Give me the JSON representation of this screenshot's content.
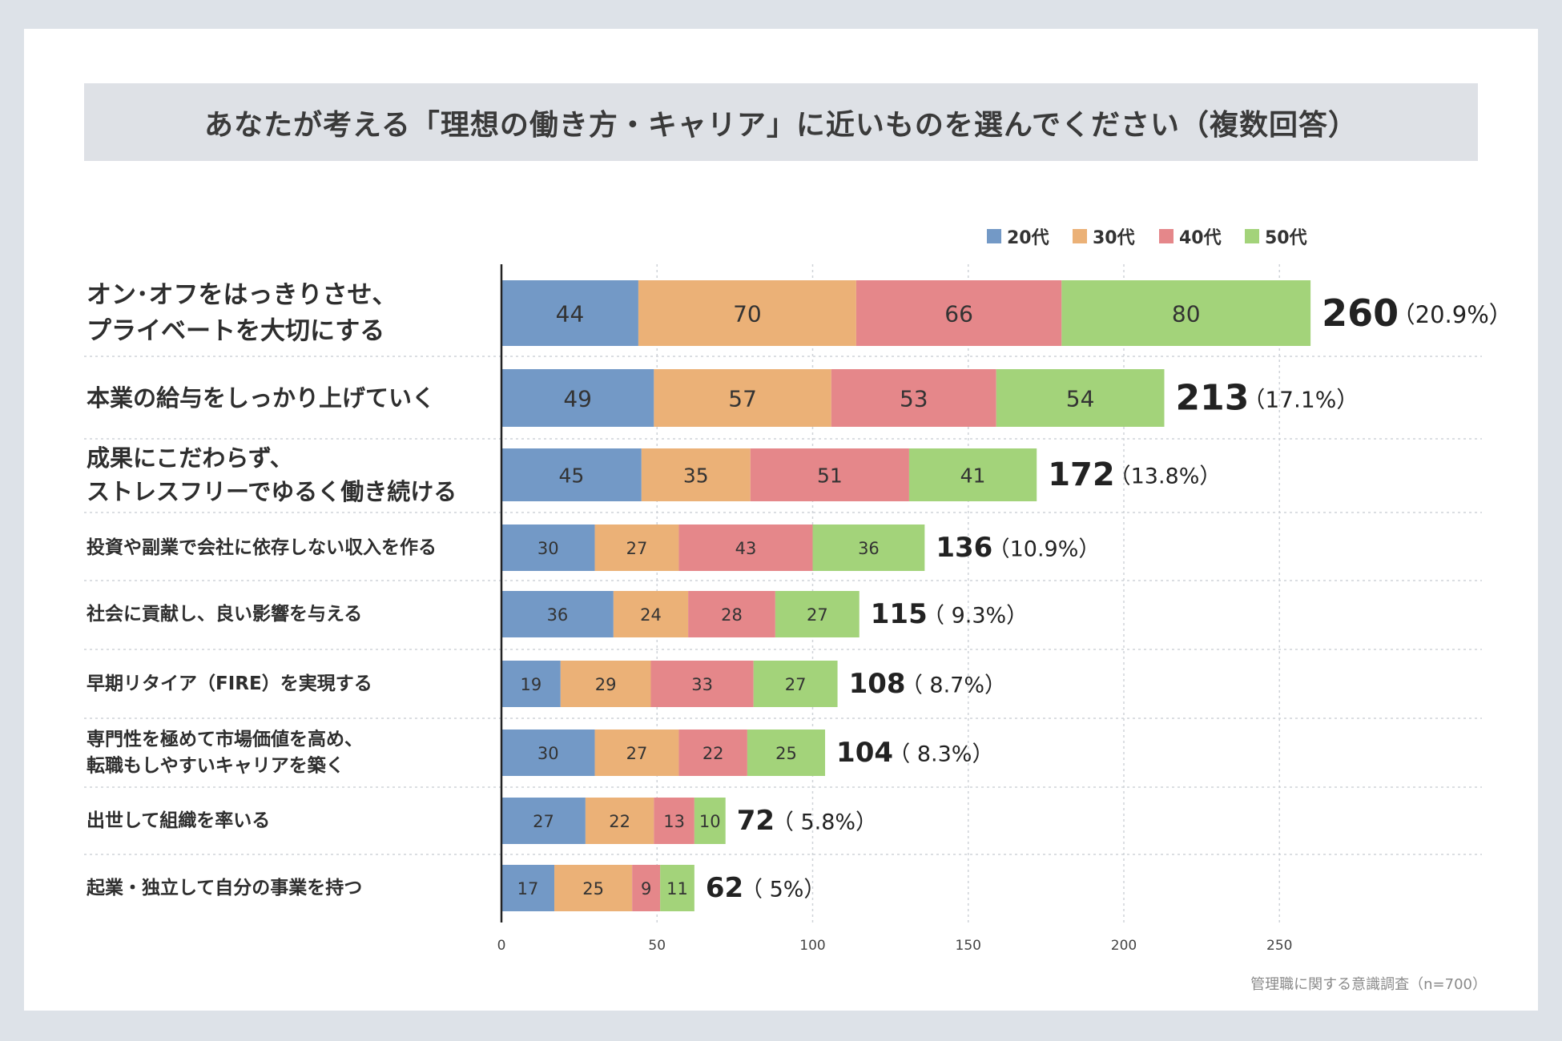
{
  "chart_data": {
    "type": "bar",
    "orientation": "horizontal",
    "stacked": true,
    "title": "あなたが考える「理想の働き方・キャリア」に近いものを選んでください（複数回答）",
    "source": "管理職に関する意識調査（n=700）",
    "xlim": [
      0,
      260
    ],
    "xticks": [
      0,
      50,
      100,
      150,
      200,
      250
    ],
    "grid": true,
    "legend_position": "top-right",
    "categories": [
      [
        "オン･オフをはっきりさせ、",
        "プライベートを大切にする"
      ],
      [
        "本業の給与をしっかり上げていく"
      ],
      [
        "成果にこだわらず、",
        "ストレスフリーでゆるく働き続ける"
      ],
      [
        "投資や副業で会社に依存しない収入を作る"
      ],
      [
        "社会に貢献し、良い影響を与える"
      ],
      [
        "早期リタイア（FIRE）を実現する"
      ],
      [
        "専門性を極めて市場価値を高め、",
        "転職もしやすいキャリアを築く"
      ],
      [
        "出世して組織を率いる"
      ],
      [
        "起業・独立して自分の事業を持つ"
      ]
    ],
    "series": [
      {
        "name": "20代",
        "color": "#7399c6",
        "values": [
          44,
          49,
          45,
          30,
          36,
          19,
          30,
          27,
          17
        ]
      },
      {
        "name": "30代",
        "color": "#ebb177",
        "values": [
          70,
          57,
          35,
          27,
          24,
          29,
          27,
          22,
          25
        ]
      },
      {
        "name": "40代",
        "color": "#e5878a",
        "values": [
          66,
          53,
          51,
          43,
          28,
          33,
          22,
          13,
          9
        ]
      },
      {
        "name": "50代",
        "color": "#a3d37a",
        "values": [
          80,
          54,
          41,
          36,
          27,
          27,
          25,
          10,
          11
        ]
      }
    ],
    "totals": [
      260,
      213,
      172,
      136,
      115,
      108,
      104,
      72,
      62
    ],
    "percent_labels": [
      "（20.9%）",
      "（17.1%）",
      "（13.8%）",
      "（10.9%）",
      "（ 9.3%）",
      "（ 8.7%）",
      "（ 8.3%）",
      "（ 5.8%）",
      "（ 5%）"
    ]
  }
}
